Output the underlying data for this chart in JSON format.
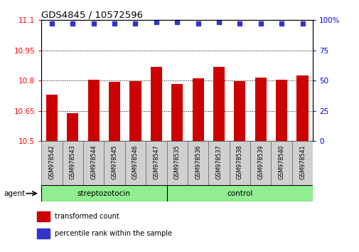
{
  "title": "GDS4845 / 10572596",
  "samples": [
    "GSM978542",
    "GSM978543",
    "GSM978544",
    "GSM978545",
    "GSM978546",
    "GSM978547",
    "GSM978535",
    "GSM978536",
    "GSM978537",
    "GSM978538",
    "GSM978539",
    "GSM978540",
    "GSM978541"
  ],
  "bar_values": [
    10.73,
    10.64,
    10.805,
    10.795,
    10.797,
    10.867,
    10.785,
    10.812,
    10.868,
    10.797,
    10.815,
    10.803,
    10.827
  ],
  "dot_y": [
    11.085,
    11.085,
    11.085,
    11.085,
    11.085,
    11.09,
    11.09,
    11.085,
    11.09,
    11.085,
    11.085,
    11.085,
    11.085
  ],
  "bar_color": "#cc0000",
  "dot_color": "#3333cc",
  "ylim_left": [
    10.5,
    11.1
  ],
  "ylim_right": [
    0,
    100
  ],
  "yticks_left": [
    10.5,
    10.65,
    10.8,
    10.95,
    11.1
  ],
  "yticks_right": [
    0,
    25,
    50,
    75,
    100
  ],
  "ytick_labels_right": [
    "0",
    "25",
    "50",
    "75",
    "100%"
  ],
  "grid_lines": [
    10.65,
    10.8,
    10.95
  ],
  "groups": [
    {
      "label": "streptozotocin",
      "start": 0,
      "end": 6
    },
    {
      "label": "control",
      "start": 6,
      "end": 13
    }
  ],
  "group_color": "#90ee90",
  "agent_label": "agent",
  "legend_items": [
    {
      "color": "#cc0000",
      "label": "transformed count"
    },
    {
      "color": "#3333cc",
      "label": "percentile rank within the sample"
    }
  ],
  "sample_label_bg": "#d0d0d0",
  "bar_bottom": 10.5,
  "bar_width": 0.55
}
